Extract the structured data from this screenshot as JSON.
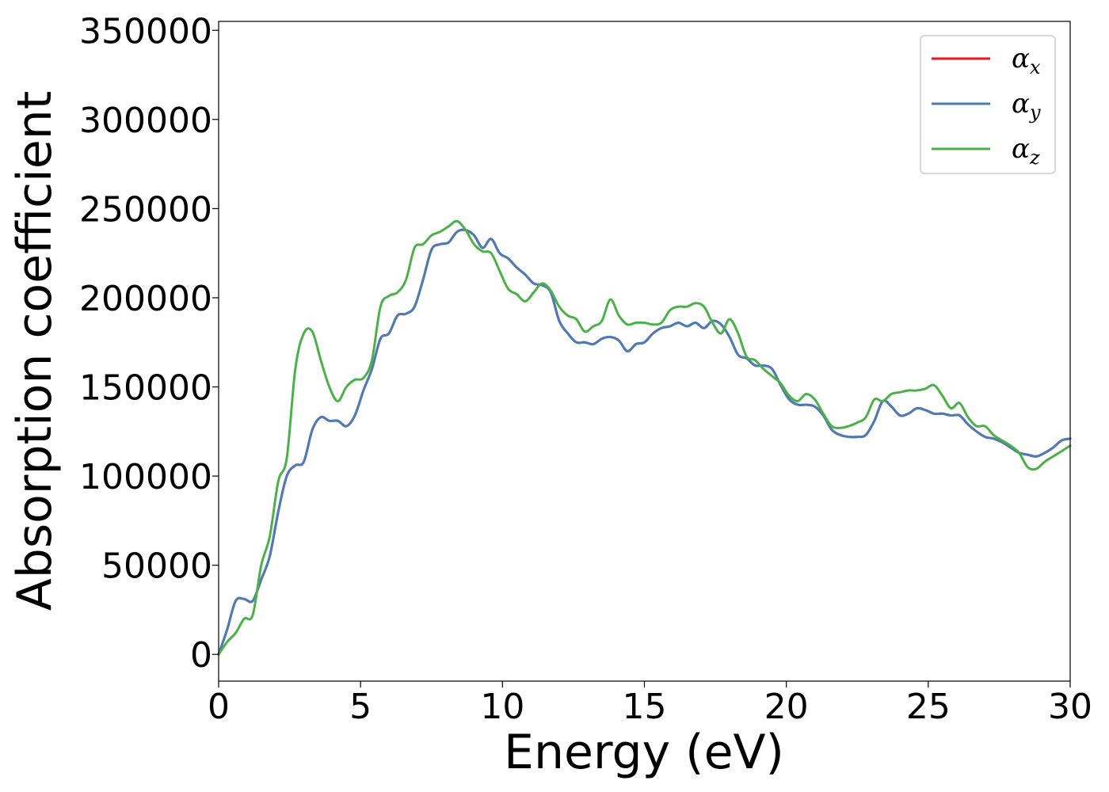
{
  "chart_data": {
    "type": "line",
    "xlabel": "Energy (eV)",
    "ylabel": "Absorption coefficient",
    "xlim": [
      0,
      30
    ],
    "ylim": [
      -15000,
      355000
    ],
    "xticks": [
      0,
      5,
      10,
      15,
      20,
      25,
      30
    ],
    "yticks": [
      0,
      50000,
      100000,
      150000,
      200000,
      250000,
      300000,
      350000
    ],
    "grid": false,
    "legend_position": "top-right",
    "series": [
      {
        "name": "αx",
        "symbol": "α",
        "subscript": "x",
        "color": "#e41a1c",
        "x": [
          0,
          0.3,
          0.6,
          0.9,
          1.2,
          1.5,
          1.8,
          2.1,
          2.4,
          2.7,
          3.0,
          3.3,
          3.6,
          3.9,
          4.2,
          4.5,
          4.8,
          5.1,
          5.4,
          5.7,
          6.0,
          6.3,
          6.6,
          6.9,
          7.2,
          7.5,
          7.8,
          8.1,
          8.4,
          8.7,
          9.0,
          9.3,
          9.6,
          9.9,
          10.2,
          10.5,
          10.8,
          11.1,
          11.4,
          11.7,
          12.0,
          12.3,
          12.6,
          12.9,
          13.2,
          13.5,
          13.8,
          14.1,
          14.4,
          14.7,
          15.0,
          15.3,
          15.6,
          15.9,
          16.2,
          16.5,
          16.8,
          17.1,
          17.4,
          17.7,
          18.0,
          18.3,
          18.6,
          18.9,
          19.2,
          19.5,
          19.8,
          20.1,
          20.4,
          20.7,
          21.0,
          21.3,
          21.6,
          21.9,
          22.2,
          22.5,
          22.8,
          23.1,
          23.4,
          23.7,
          24.0,
          24.3,
          24.6,
          24.9,
          25.2,
          25.5,
          25.8,
          26.1,
          26.4,
          26.7,
          27.0,
          27.3,
          27.6,
          27.9,
          28.2,
          28.5,
          28.8,
          29.1,
          29.4,
          29.7,
          30.0
        ],
        "y": [
          0,
          14000,
          30000,
          31000,
          30000,
          42000,
          55000,
          80000,
          100000,
          106000,
          108000,
          126000,
          133000,
          131000,
          131000,
          128000,
          134000,
          148000,
          160000,
          177000,
          180000,
          190000,
          191000,
          195000,
          210000,
          227000,
          230000,
          231000,
          237000,
          238000,
          235000,
          228000,
          233000,
          225000,
          222000,
          217000,
          213000,
          208000,
          207000,
          203000,
          187000,
          180000,
          175000,
          175000,
          174000,
          177000,
          178000,
          176000,
          170000,
          174000,
          175000,
          180000,
          183000,
          184000,
          186000,
          184000,
          186000,
          183000,
          187000,
          185000,
          178000,
          168000,
          166000,
          162000,
          162000,
          160000,
          151000,
          143000,
          140000,
          140000,
          139000,
          134000,
          126000,
          123000,
          122000,
          122000,
          123000,
          131000,
          142000,
          139000,
          134000,
          135000,
          138000,
          137000,
          135000,
          135000,
          134000,
          134000,
          129000,
          125000,
          122000,
          121000,
          119000,
          116000,
          113000,
          112000,
          111000,
          113000,
          116000,
          120000,
          121000
        ]
      },
      {
        "name": "αy",
        "symbol": "α",
        "subscript": "y",
        "color": "#4a7db5",
        "x": [
          0,
          0.3,
          0.6,
          0.9,
          1.2,
          1.5,
          1.8,
          2.1,
          2.4,
          2.7,
          3.0,
          3.3,
          3.6,
          3.9,
          4.2,
          4.5,
          4.8,
          5.1,
          5.4,
          5.7,
          6.0,
          6.3,
          6.6,
          6.9,
          7.2,
          7.5,
          7.8,
          8.1,
          8.4,
          8.7,
          9.0,
          9.3,
          9.6,
          9.9,
          10.2,
          10.5,
          10.8,
          11.1,
          11.4,
          11.7,
          12.0,
          12.3,
          12.6,
          12.9,
          13.2,
          13.5,
          13.8,
          14.1,
          14.4,
          14.7,
          15.0,
          15.3,
          15.6,
          15.9,
          16.2,
          16.5,
          16.8,
          17.1,
          17.4,
          17.7,
          18.0,
          18.3,
          18.6,
          18.9,
          19.2,
          19.5,
          19.8,
          20.1,
          20.4,
          20.7,
          21.0,
          21.3,
          21.6,
          21.9,
          22.2,
          22.5,
          22.8,
          23.1,
          23.4,
          23.7,
          24.0,
          24.3,
          24.6,
          24.9,
          25.2,
          25.5,
          25.8,
          26.1,
          26.4,
          26.7,
          27.0,
          27.3,
          27.6,
          27.9,
          28.2,
          28.5,
          28.8,
          29.1,
          29.4,
          29.7,
          30.0
        ],
        "y": [
          0,
          14000,
          30000,
          31000,
          30000,
          42000,
          55000,
          80000,
          100000,
          106000,
          108000,
          126000,
          133000,
          131000,
          131000,
          128000,
          134000,
          148000,
          160000,
          177000,
          180000,
          190000,
          191000,
          195000,
          210000,
          227000,
          230000,
          231000,
          237000,
          238000,
          235000,
          228000,
          233000,
          225000,
          222000,
          217000,
          213000,
          208000,
          207000,
          203000,
          187000,
          180000,
          175000,
          175000,
          174000,
          177000,
          178000,
          176000,
          170000,
          174000,
          175000,
          180000,
          183000,
          184000,
          186000,
          184000,
          186000,
          183000,
          187000,
          185000,
          178000,
          168000,
          166000,
          162000,
          162000,
          160000,
          151000,
          143000,
          140000,
          140000,
          139000,
          134000,
          126000,
          123000,
          122000,
          122000,
          123000,
          131000,
          142000,
          139000,
          134000,
          135000,
          138000,
          137000,
          135000,
          135000,
          134000,
          134000,
          129000,
          125000,
          122000,
          121000,
          119000,
          116000,
          113000,
          112000,
          111000,
          113000,
          116000,
          120000,
          121000
        ]
      },
      {
        "name": "αz",
        "symbol": "α",
        "subscript": "z",
        "color": "#4daf4a",
        "x": [
          0,
          0.3,
          0.6,
          0.9,
          1.2,
          1.5,
          1.8,
          2.1,
          2.4,
          2.7,
          3.0,
          3.3,
          3.6,
          3.9,
          4.2,
          4.5,
          4.8,
          5.1,
          5.4,
          5.7,
          6.0,
          6.3,
          6.6,
          6.9,
          7.2,
          7.5,
          7.8,
          8.1,
          8.4,
          8.7,
          9.0,
          9.3,
          9.6,
          9.9,
          10.2,
          10.5,
          10.8,
          11.1,
          11.4,
          11.7,
          12.0,
          12.3,
          12.6,
          12.9,
          13.2,
          13.5,
          13.8,
          14.1,
          14.4,
          14.7,
          15.0,
          15.3,
          15.6,
          15.9,
          16.2,
          16.5,
          16.8,
          17.1,
          17.4,
          17.7,
          18.0,
          18.3,
          18.6,
          18.9,
          19.2,
          19.5,
          19.8,
          20.1,
          20.4,
          20.7,
          21.0,
          21.3,
          21.6,
          21.9,
          22.2,
          22.5,
          22.8,
          23.1,
          23.4,
          23.7,
          24.0,
          24.3,
          24.6,
          24.9,
          25.2,
          25.5,
          25.8,
          26.1,
          26.4,
          26.7,
          27.0,
          27.3,
          27.6,
          27.9,
          28.2,
          28.5,
          28.8,
          29.1,
          29.4,
          29.7,
          30.0
        ],
        "y": [
          0,
          7000,
          12000,
          20000,
          22000,
          50000,
          66000,
          97000,
          110000,
          160000,
          180000,
          181000,
          165000,
          150000,
          142000,
          150000,
          154000,
          155000,
          165000,
          195000,
          201000,
          203000,
          210000,
          228000,
          230000,
          235000,
          237000,
          240000,
          243000,
          238000,
          230000,
          226000,
          225000,
          215000,
          205000,
          202000,
          198000,
          203000,
          208000,
          204000,
          195000,
          190000,
          188000,
          181000,
          184000,
          187000,
          199000,
          190000,
          185000,
          186000,
          186000,
          185000,
          186000,
          193000,
          195000,
          195000,
          197000,
          195000,
          186000,
          180000,
          188000,
          180000,
          167000,
          165000,
          160000,
          156000,
          152000,
          145000,
          142000,
          146000,
          143000,
          135000,
          128000,
          127000,
          128000,
          130000,
          133000,
          143000,
          142000,
          146000,
          147000,
          148000,
          148000,
          149000,
          151000,
          145000,
          138000,
          141000,
          133000,
          128000,
          128000,
          123000,
          120000,
          117000,
          113000,
          105000,
          104000,
          108000,
          111000,
          114000,
          117000
        ]
      }
    ]
  }
}
